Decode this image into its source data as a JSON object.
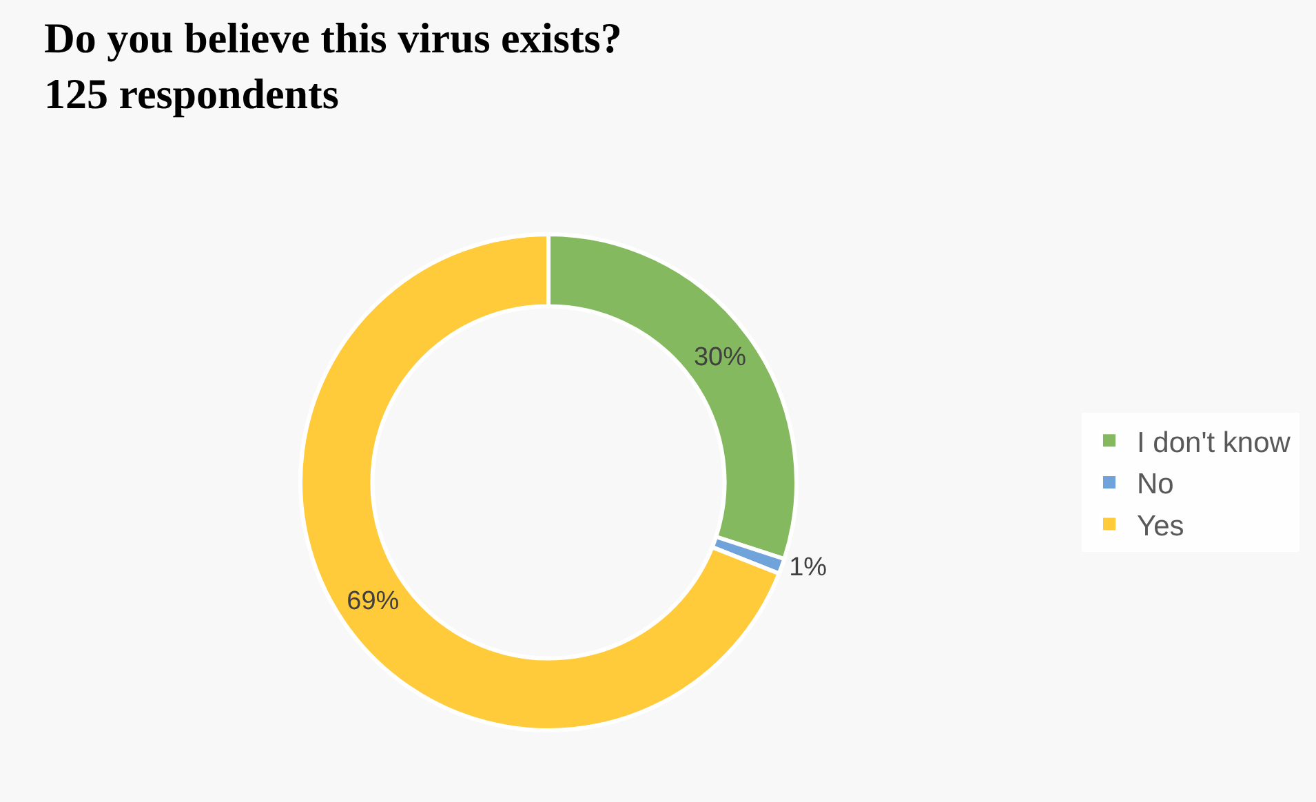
{
  "chart_data": {
    "type": "donut",
    "title": "Do you believe this virus exists?\n125 respondents",
    "categories": [
      "I don't know",
      "No",
      "Yes"
    ],
    "values": [
      30,
      1,
      69
    ],
    "colors": [
      "#84b95f",
      "#6fa3d9",
      "#ffcb3a"
    ],
    "value_labels": [
      "30%",
      "1%",
      "69%"
    ],
    "legend": "right"
  }
}
